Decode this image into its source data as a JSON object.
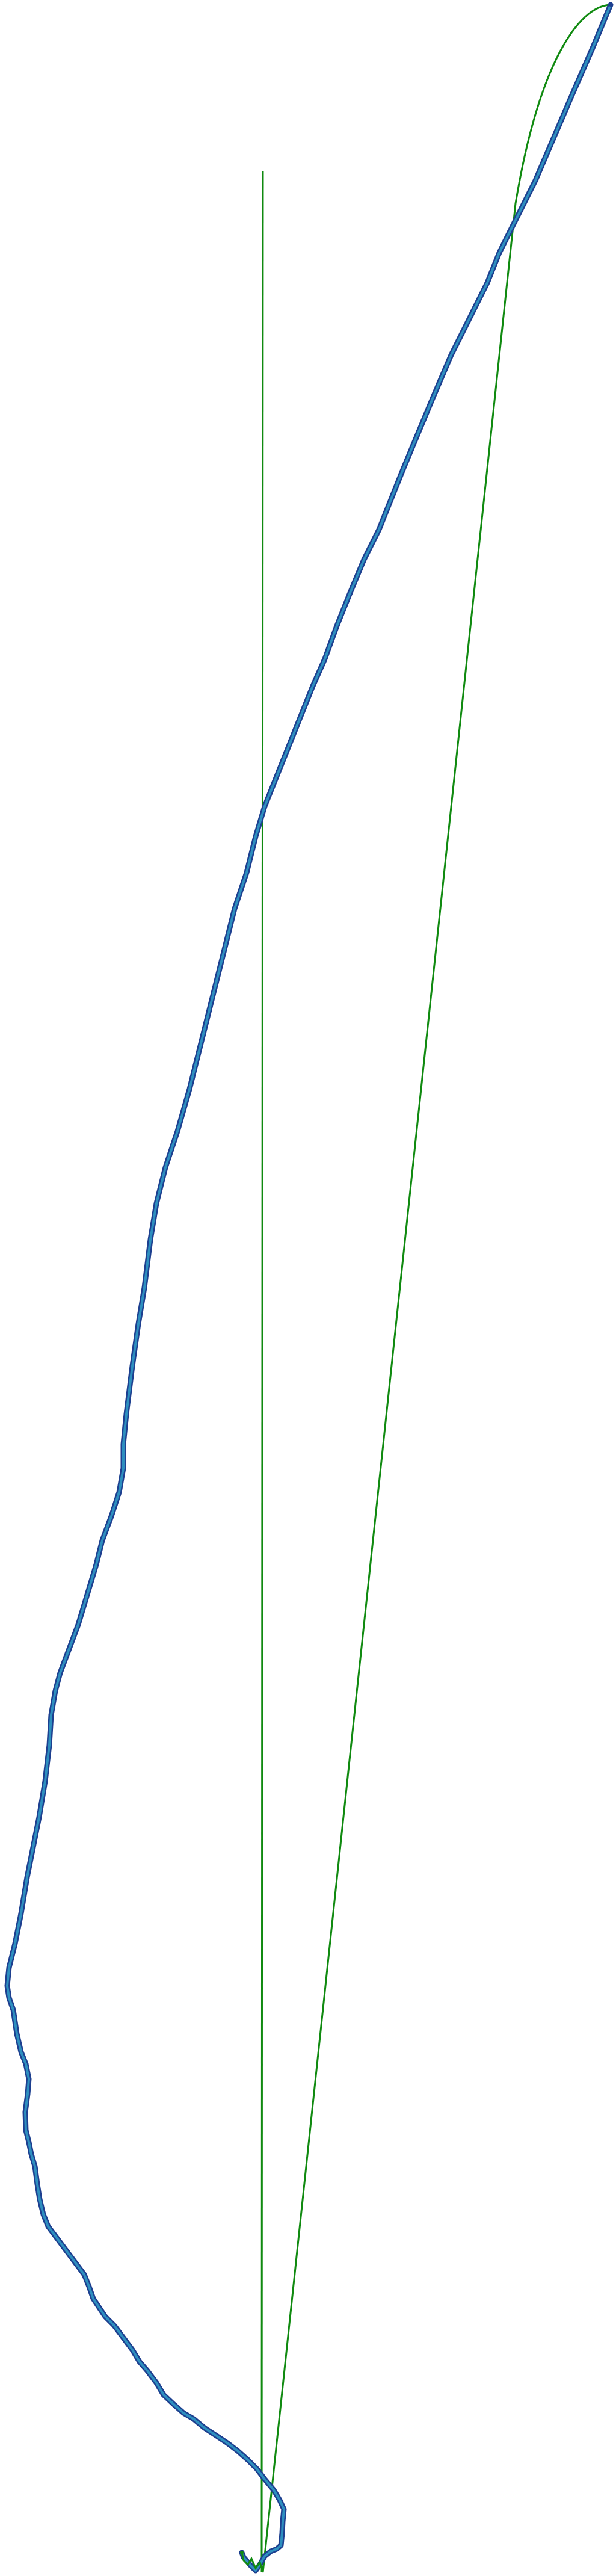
{
  "colors": {
    "background": "#ffffff",
    "route_outer": "#1d3f8f",
    "route_inner": "#2e8fbf",
    "straight_line": "#108a10"
  },
  "icons": {
    "start_marker": "start-marker-icon",
    "end_marker": "end-marker-icon"
  }
}
